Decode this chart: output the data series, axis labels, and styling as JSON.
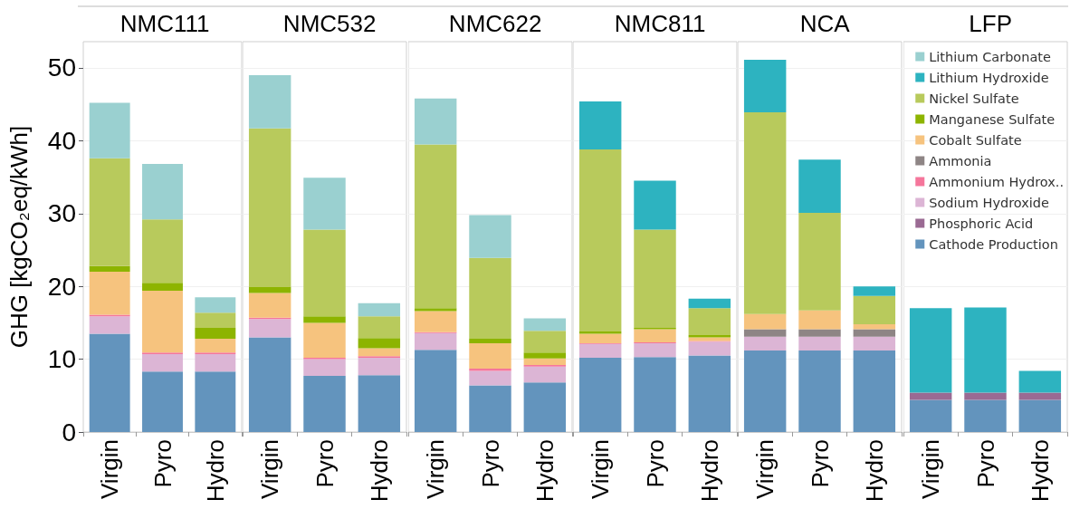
{
  "chart_data": [
    {
      "type": "bar",
      "stacked": true,
      "title": "NMC111",
      "ylabel": "GHG [kgCO₂eq/kWh]",
      "categories": [
        "Virgin",
        "Pyro",
        "Hydro"
      ],
      "ylim": [
        0,
        53.6
      ],
      "yticks": [
        0,
        10,
        20,
        30,
        40,
        50
      ],
      "grid": "y",
      "legend": false,
      "series": [
        {
          "color": "#6394bd",
          "values": [
            13.5,
            8.3,
            8.3
          ]
        },
        {
          "color": "#dcb5d5",
          "values": [
            2.4,
            2.4,
            2.4
          ]
        },
        {
          "color": "#f5769b",
          "values": [
            0.2,
            0.2,
            0.2
          ]
        },
        {
          "color": "#f6c37e",
          "values": [
            5.9,
            8.5,
            1.9
          ]
        },
        {
          "color": "#8db400",
          "values": [
            0.8,
            1.1,
            1.5
          ]
        },
        {
          "color": "#b8ca5c",
          "values": [
            14.8,
            8.7,
            2.1
          ]
        },
        {
          "color": "#9ad0d0",
          "values": [
            7.6,
            7.6,
            2.1
          ]
        }
      ]
    },
    {
      "type": "bar",
      "stacked": true,
      "title": "NMC532",
      "categories": [
        "Virgin",
        "Pyro",
        "Hydro"
      ],
      "ylim": [
        0,
        53.6
      ],
      "yticks": [
        0,
        10,
        20,
        30,
        40,
        50
      ],
      "grid": "y",
      "legend": false,
      "tick_labels": "x",
      "series": [
        {
          "color": "#6394bd",
          "values": [
            13.0,
            7.7,
            7.8
          ]
        },
        {
          "color": "#dcb5d5",
          "values": [
            2.5,
            2.3,
            2.4
          ]
        },
        {
          "color": "#f5769b",
          "values": [
            0.2,
            0.2,
            0.2
          ]
        },
        {
          "color": "#f6c37e",
          "values": [
            3.4,
            4.8,
            1.1
          ]
        },
        {
          "color": "#8db400",
          "values": [
            0.8,
            0.9,
            1.4
          ]
        },
        {
          "color": "#b8ca5c",
          "values": [
            21.8,
            11.9,
            3.0
          ]
        },
        {
          "color": "#9ad0d0",
          "values": [
            7.3,
            7.1,
            1.8
          ]
        }
      ]
    },
    {
      "type": "bar",
      "stacked": true,
      "title": "NMC622",
      "categories": [
        "Virgin",
        "Pyro",
        "Hydro"
      ],
      "ylim": [
        0,
        53.6
      ],
      "yticks": [
        0,
        10,
        20,
        30,
        40,
        50
      ],
      "grid": "y",
      "legend": false,
      "tick_labels": "x",
      "series": [
        {
          "color": "#6394bd",
          "values": [
            11.3,
            6.4,
            6.8
          ]
        },
        {
          "color": "#dcb5d5",
          "values": [
            2.3,
            2.0,
            2.2
          ]
        },
        {
          "color": "#f5769b",
          "values": [
            0.1,
            0.3,
            0.2
          ]
        },
        {
          "color": "#f6c37e",
          "values": [
            2.9,
            3.5,
            0.9
          ]
        },
        {
          "color": "#8db400",
          "values": [
            0.4,
            0.6,
            0.8
          ]
        },
        {
          "color": "#b8ca5c",
          "values": [
            22.5,
            11.1,
            3.0
          ]
        },
        {
          "color": "#9ad0d0",
          "values": [
            6.3,
            5.9,
            1.7
          ]
        }
      ]
    },
    {
      "type": "bar",
      "stacked": true,
      "title": "NMC811",
      "categories": [
        "Virgin",
        "Pyro",
        "Hydro"
      ],
      "ylim": [
        0,
        53.6
      ],
      "yticks": [
        0,
        10,
        20,
        30,
        40,
        50
      ],
      "grid": "y",
      "legend": false,
      "tick_labels": "x",
      "series": [
        {
          "color": "#6394bd",
          "values": [
            10.2,
            10.3,
            10.5
          ]
        },
        {
          "color": "#dcb5d5",
          "values": [
            1.9,
            1.9,
            1.9
          ]
        },
        {
          "color": "#f5769b",
          "values": [
            0.1,
            0.1,
            0.1
          ]
        },
        {
          "color": "#f6c37e",
          "values": [
            1.3,
            1.8,
            0.5
          ]
        },
        {
          "color": "#8db400",
          "values": [
            0.3,
            0.2,
            0.3
          ]
        },
        {
          "color": "#b8ca5c",
          "values": [
            25.0,
            13.5,
            3.7
          ]
        },
        {
          "color": "#2db3c0",
          "values": [
            6.6,
            6.7,
            1.3
          ]
        }
      ]
    },
    {
      "type": "bar",
      "stacked": true,
      "title": "NCA",
      "categories": [
        "Virgin",
        "Pyro",
        "Hydro"
      ],
      "ylim": [
        0,
        53.6
      ],
      "yticks": [
        0,
        10,
        20,
        30,
        40,
        50
      ],
      "grid": "y",
      "legend": false,
      "tick_labels": "x",
      "series": [
        {
          "color": "#6394bd",
          "values": [
            11.2,
            11.2,
            11.2
          ]
        },
        {
          "color": "#dcb5d5",
          "values": [
            1.9,
            1.9,
            1.9
          ]
        },
        {
          "color": "#8e8585",
          "values": [
            1.0,
            1.0,
            1.0
          ]
        },
        {
          "color": "#f6c37e",
          "values": [
            2.1,
            2.6,
            0.7
          ]
        },
        {
          "color": "#b8ca5c",
          "values": [
            27.7,
            13.4,
            3.9
          ]
        },
        {
          "color": "#2db3c0",
          "values": [
            7.2,
            7.3,
            1.3
          ]
        }
      ]
    },
    {
      "type": "bar",
      "stacked": true,
      "title": "LFP",
      "categories": [
        "Virgin",
        "Pyro",
        "Hydro"
      ],
      "ylim": [
        0,
        53.6
      ],
      "yticks": [
        0,
        10,
        20,
        30,
        40,
        50
      ],
      "grid": "y",
      "legend": "top right",
      "tick_labels": "x",
      "series": [
        {
          "name": "Cathode Production",
          "color": "#6394bd",
          "values": [
            4.4,
            4.4,
            4.4
          ]
        },
        {
          "name": "Phosphoric Acid",
          "color": "#9a6a93",
          "values": [
            1.0,
            1.0,
            1.0
          ]
        },
        {
          "name": "Sodium Hydroxide",
          "color": "#dcb5d5",
          "values": [
            null,
            null,
            null
          ]
        },
        {
          "name": "Ammonium Hydrox..",
          "color": "#f5769b",
          "values": [
            null,
            null,
            null
          ]
        },
        {
          "name": "Ammonia",
          "color": "#8e8585",
          "values": [
            null,
            null,
            null
          ]
        },
        {
          "name": "Cobalt Sulfate",
          "color": "#f6c37e",
          "values": [
            null,
            null,
            null
          ]
        },
        {
          "name": "Manganese Sulfate",
          "color": "#8db400",
          "values": [
            null,
            null,
            null
          ]
        },
        {
          "name": "Nickel Sulfate",
          "color": "#b8ca5c",
          "values": [
            null,
            null,
            null
          ]
        },
        {
          "name": "Lithium Hydroxide",
          "color": "#2db3c0",
          "values": [
            11.6,
            11.7,
            3.0
          ]
        },
        {
          "name": "Lithium Carbonate",
          "color": "#9ad0d0",
          "values": [
            null,
            null,
            null
          ]
        }
      ]
    }
  ]
}
